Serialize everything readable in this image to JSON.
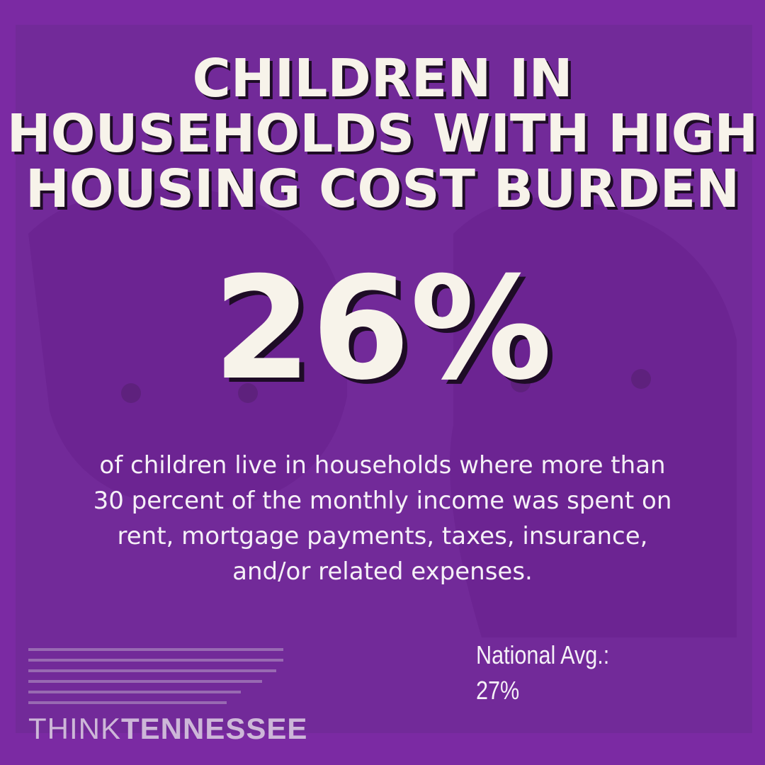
{
  "header": {
    "title_lines": [
      "CHILDREN IN",
      "HOUSEHOLDS WITH HIGH",
      "HOUSING COST BURDEN"
    ]
  },
  "stat": {
    "value": "26%",
    "description_lines": [
      "of children live in households where more than",
      "30 percent of the monthly income was spent on",
      "rent, mortgage payments, taxes, insurance,",
      "and/or related expenses."
    ]
  },
  "comparison": {
    "label": "National Avg.:",
    "value": "27%"
  },
  "logo": {
    "part1": "THINK",
    "part2": "TENNESSEE"
  }
}
